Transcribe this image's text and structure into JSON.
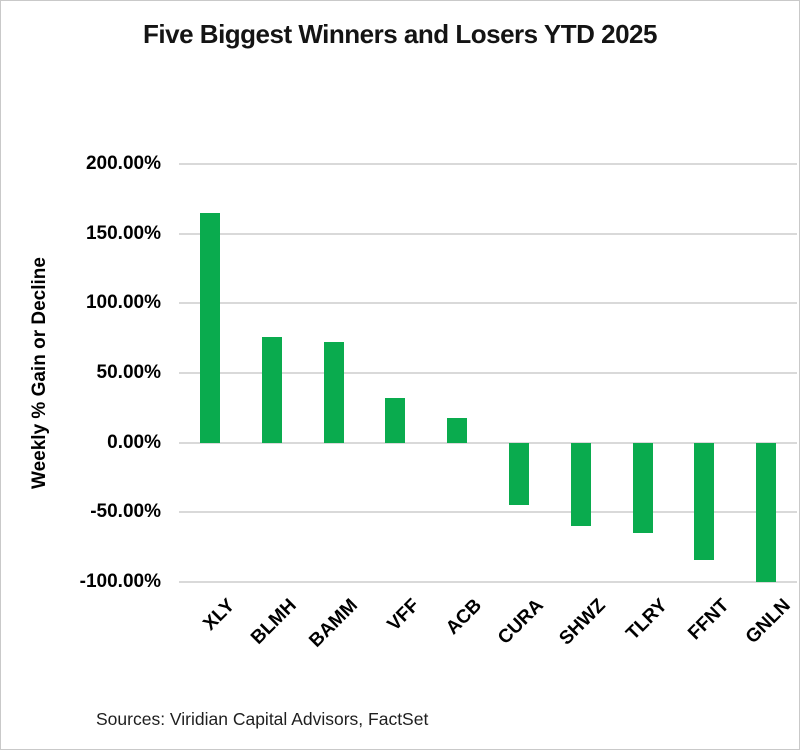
{
  "title": "Five Biggest Winners and Losers YTD 2025",
  "source_note": "Sources: Viridian Capital Advisors, FactSet",
  "colors": {
    "bar": "#0aab4e",
    "gridline": "#d9d9d9",
    "text": "#000000",
    "border": "#c9c9c9",
    "background": "#ffffff"
  },
  "chart_data": {
    "type": "bar",
    "title": "Five Biggest Winners and Losers YTD 2025",
    "categories": [
      "XLY",
      "BLMH",
      "BAMM",
      "VFF",
      "ACB",
      "CURA",
      "SHWZ",
      "TLRY",
      "FFNT",
      "GNLN"
    ],
    "values": [
      165,
      76,
      72,
      32,
      18,
      -45,
      -60,
      -65,
      -84,
      -100
    ],
    "values_unit": "percent",
    "xlabel": "",
    "ylabel": "Weekly % Gain or Decline",
    "ylim": [
      -100,
      200
    ],
    "ytick_step": 50,
    "ytick_labels": [
      "200.00%",
      "150.00%",
      "100.00%",
      "50.00%",
      "0.00%",
      "-50.00%",
      "-100.00%"
    ],
    "grid": true,
    "legend": "none",
    "bar_color": "#0aab4e",
    "source_note": "Sources: Viridian Capital Advisors, FactSet"
  }
}
